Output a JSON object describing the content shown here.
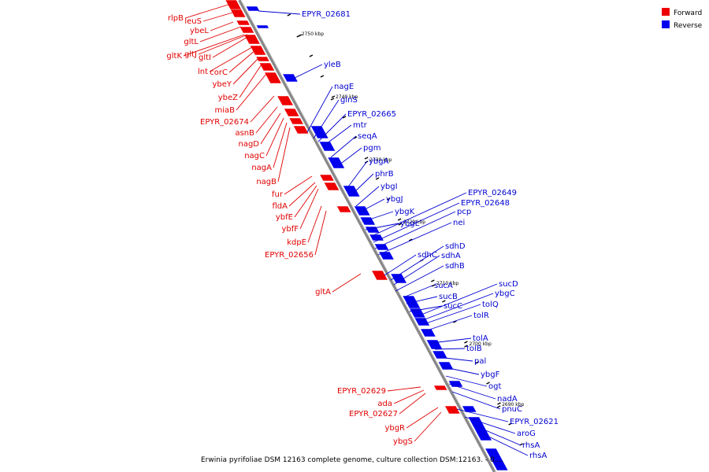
{
  "caption": "Erwinia pyrifoliae DSM 12163 complete genome, culture collection DSM:12163. - 0....",
  "legend": [
    {
      "label": "Forward",
      "color": "#ee0000"
    },
    {
      "label": "Reverse",
      "color": "#0000ee"
    }
  ],
  "ticks": [
    "2750 kbp",
    "2740 kbp",
    "2730 kbp",
    "2720 kbp",
    "2710 kbp",
    "2700 kbp",
    "2690 kbp"
  ],
  "forward_genes": [
    "rlpB",
    "leuS",
    "ybeL",
    "gltL",
    "gltK",
    "gltJ",
    "gltI",
    "lnt",
    "corC",
    "ybeY",
    "ybeZ",
    "miaB",
    "EPYR_02674",
    "asnB",
    "nagD",
    "nagC",
    "nagA",
    "nagB",
    "fur",
    "fldA",
    "ybfE",
    "ybfF",
    "kdpE",
    "EPYR_02656",
    "gltA",
    "EPYR_02629",
    "ada",
    "EPYR_02627",
    "ybgR",
    "ybgS"
  ],
  "reverse_genes": [
    "EPYR_02681",
    "yleB",
    "nagE",
    "glnS",
    "EPYR_02665",
    "mtr",
    "seqA",
    "pgm",
    "ybgA",
    "phrB",
    "ybgI",
    "ybgJ",
    "ybgK",
    "ybgL",
    "EPYR_02649",
    "EPYR_02648",
    "pcp",
    "nei",
    "sdhC",
    "sdhD",
    "sdhA",
    "sdhB",
    "sucA",
    "sucB",
    "sucC",
    "sucD",
    "ybgC",
    "tolQ",
    "tolR",
    "tolA",
    "tolB",
    "pal",
    "ybgF",
    "ogt",
    "nadA",
    "pnuC",
    "EPYR_02621",
    "aroG",
    "rhsA",
    "rhsA"
  ]
}
